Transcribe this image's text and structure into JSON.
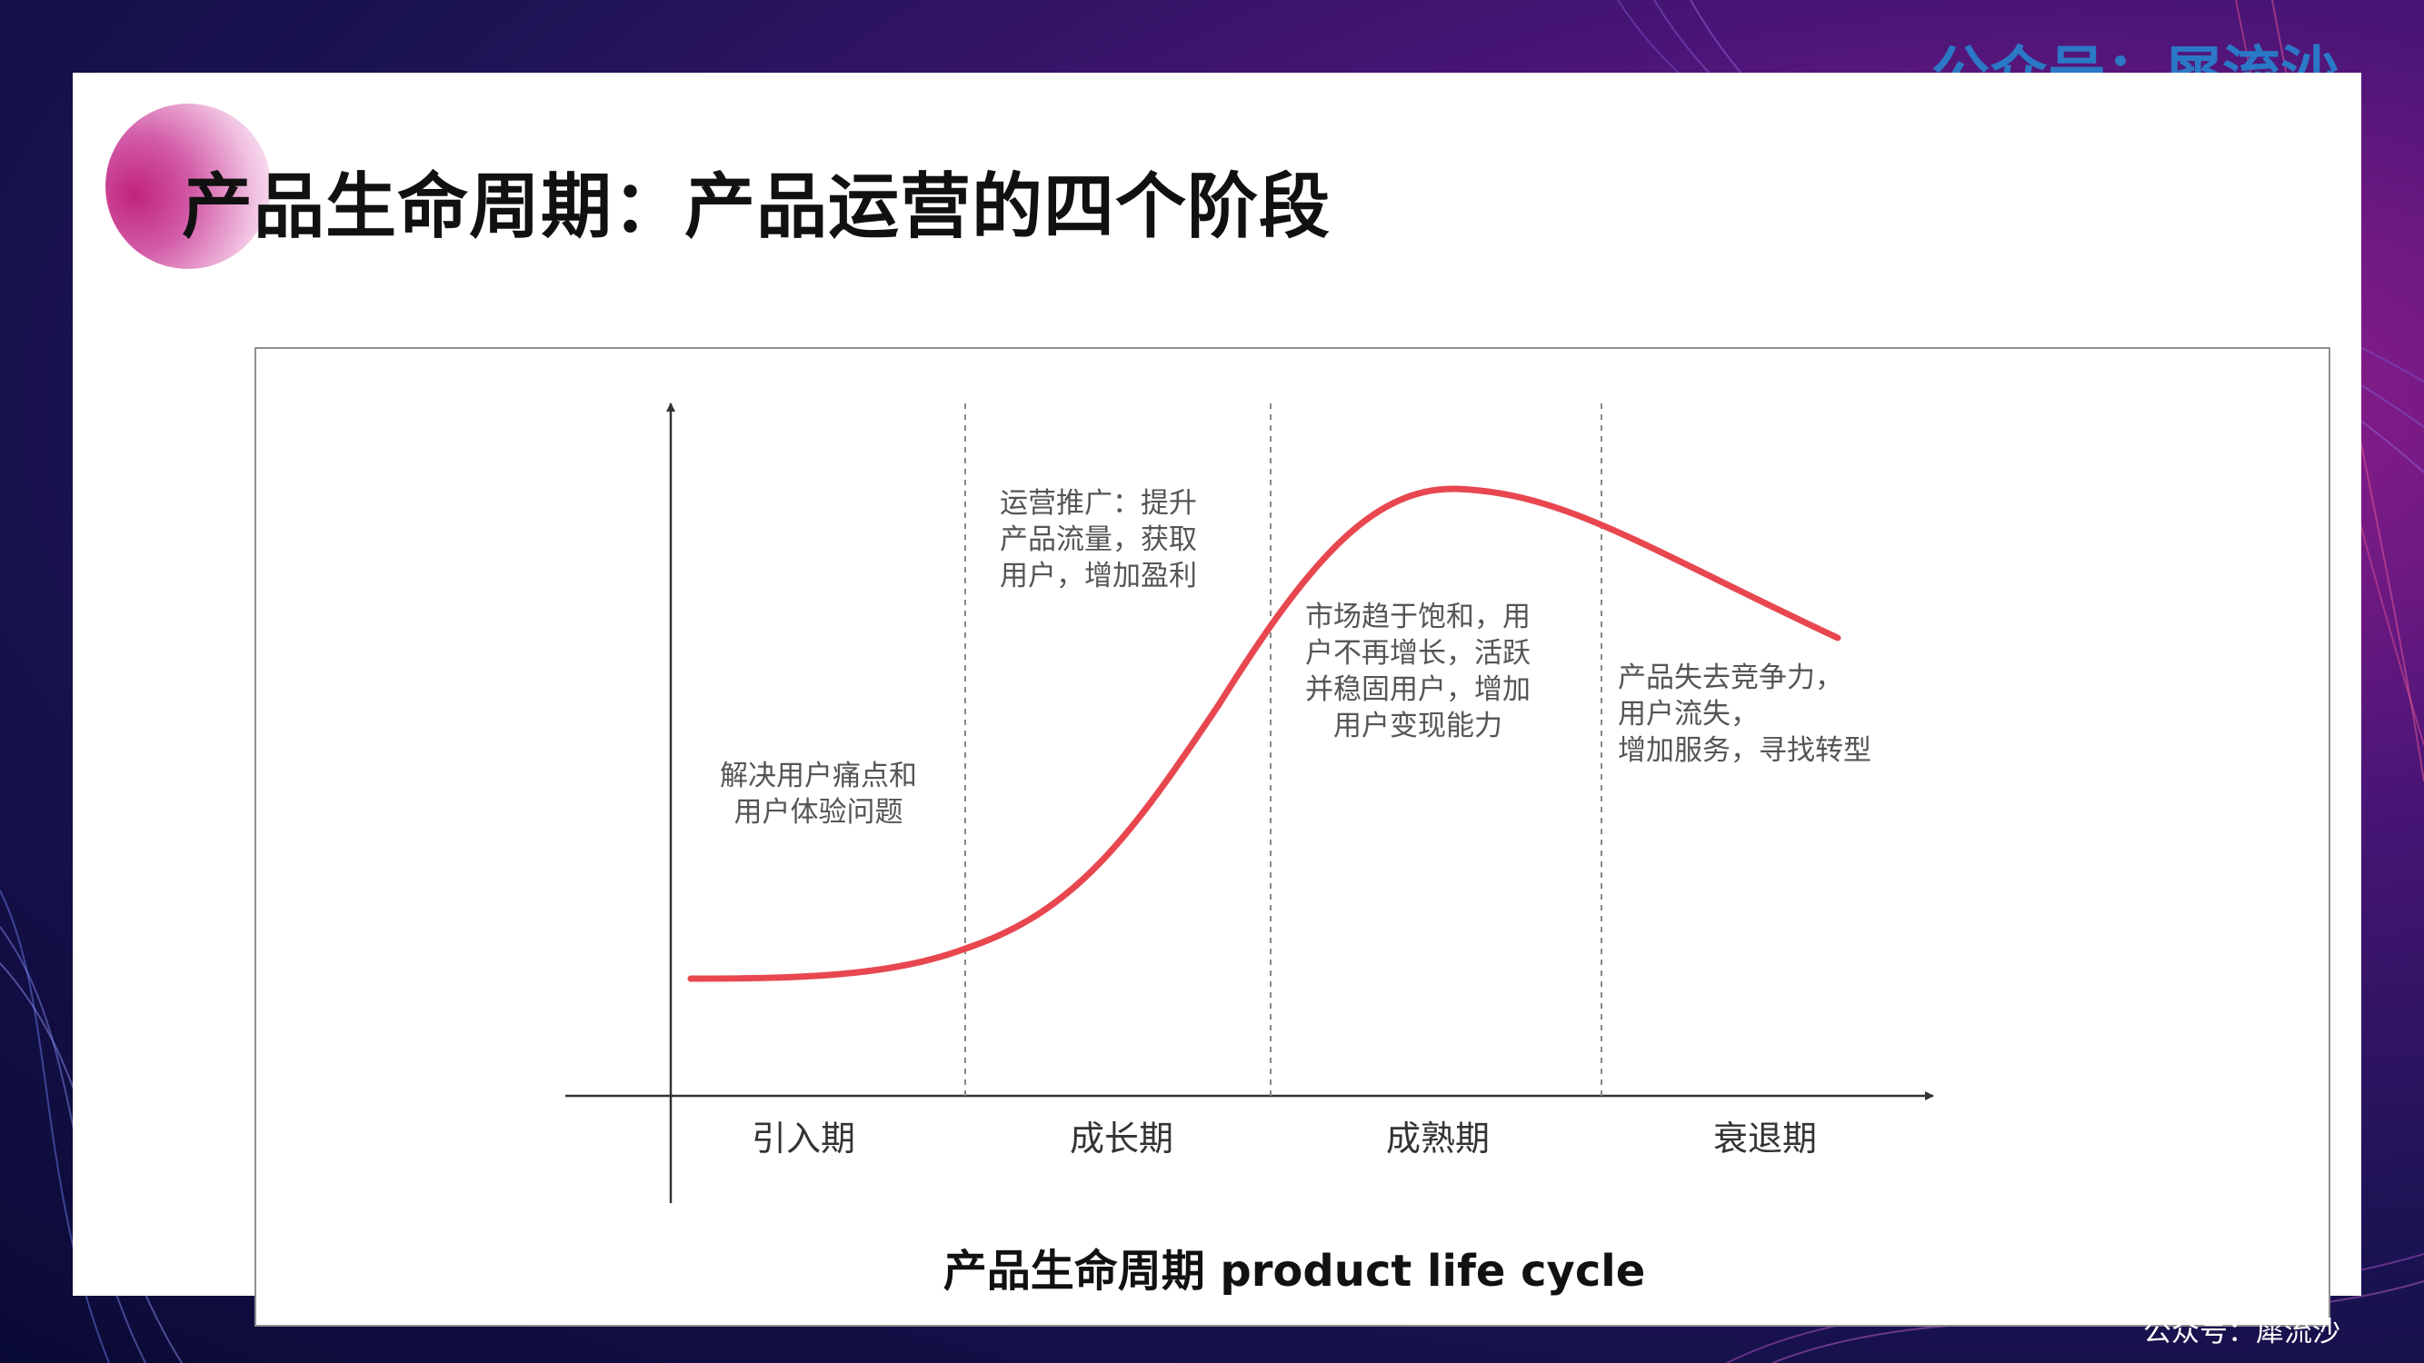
{
  "watermark": {
    "top": "公众号：犀流沙",
    "bottom": "公众号：犀流沙"
  },
  "slide": {
    "title": "产品生命周期：产品运营的四个阶段"
  },
  "diagram": {
    "caption": "产品生命周期  product life cycle",
    "stages": [
      {
        "label": "引入期",
        "note": [
          "解决用户痛点和",
          "用户体验问题"
        ]
      },
      {
        "label": "成长期",
        "note": [
          "运营推广：提升",
          "产品流量，获取",
          "用户，增加盈利"
        ]
      },
      {
        "label": "成熟期",
        "note": [
          "市场趋于饱和，用",
          "户不再增长，活跃",
          "并稳固用户，增加",
          "用户变现能力"
        ]
      },
      {
        "label": "衰退期",
        "note": [
          "产品失去竞争力，",
          "用户流失，",
          "增加服务，寻找转型"
        ]
      }
    ]
  },
  "colors": {
    "curve": "#e8474f",
    "axis": "#333333",
    "divider": "#888888",
    "watermark_top": "#2a78c6"
  }
}
